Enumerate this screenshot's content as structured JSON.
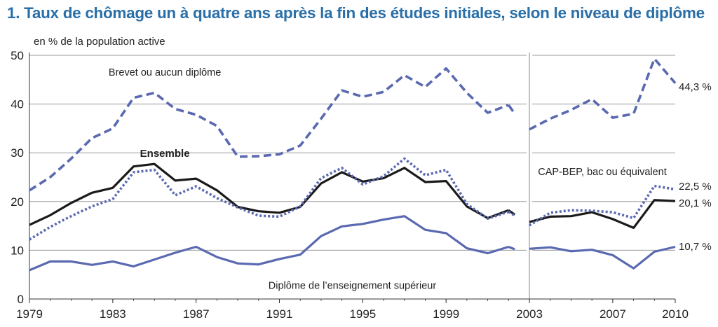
{
  "title": "1. Taux de chômage un à quatre ans après la fin des études initiales, selon le niveau de diplôme",
  "chart_data": {
    "type": "line",
    "ylabel": "en % de la population active",
    "ylim": [
      0,
      50
    ],
    "yticks": [
      0,
      10,
      20,
      30,
      40,
      50
    ],
    "xlim": [
      1979,
      2010
    ],
    "xticks": [
      1979,
      1983,
      1987,
      1991,
      1995,
      1999,
      2003,
      2007,
      2010
    ],
    "break_year": 2003,
    "grid": true,
    "colors": {
      "dark": "#1a1a1a",
      "blue": "#5a69b0",
      "grid": "#9a9a9a",
      "title": "#2a6fa8"
    },
    "series": [
      {
        "name": "Brevet ou aucun diplôme",
        "style": "dashed",
        "color": "#5a69b0",
        "segments": [
          {
            "x": [
              1979,
              1980,
              1981,
              1982,
              1983,
              1984,
              1985,
              1986,
              1987,
              1988,
              1989,
              1990,
              1991,
              1992,
              1993,
              1994,
              1995,
              1996,
              1997,
              1998,
              1999,
              2000,
              2001,
              2002
            ],
            "y": [
              22.3,
              25.0,
              28.8,
              33.0,
              35.0,
              41.3,
              42.3,
              39.0,
              37.8,
              35.5,
              29.2,
              29.3,
              29.7,
              31.5,
              37.0,
              42.8,
              41.5,
              42.5,
              45.9,
              43.5,
              47.3,
              42.3,
              38.2,
              39.8
            ]
          },
          {
            "x": [
              2002,
              2002.3
            ],
            "y": [
              39.8,
              38.0
            ]
          },
          {
            "x": [
              2003,
              2004,
              2005,
              2006,
              2007,
              2008,
              2009,
              2010
            ],
            "y": [
              34.8,
              37.0,
              38.8,
              41.0,
              37.2,
              38.0,
              49.3,
              44.3
            ]
          }
        ]
      },
      {
        "name": "Ensemble",
        "style": "solid",
        "color": "#1a1a1a",
        "segments": [
          {
            "x": [
              1979,
              1980,
              1981,
              1982,
              1983,
              1984,
              1985,
              1986,
              1987,
              1988,
              1989,
              1990,
              1991,
              1992,
              1993,
              1994,
              1995,
              1996,
              1997,
              1998,
              1999,
              2000,
              2001,
              2002
            ],
            "y": [
              15.2,
              17.2,
              19.7,
              21.8,
              22.8,
              27.2,
              27.7,
              24.3,
              24.7,
              22.3,
              18.9,
              18.0,
              17.7,
              18.9,
              23.7,
              26.0,
              24.1,
              24.8,
              26.9,
              24.0,
              24.2,
              19.0,
              16.6,
              18.2
            ]
          },
          {
            "x": [
              2002,
              2002.3
            ],
            "y": [
              18.2,
              17.3
            ]
          },
          {
            "x": [
              2003,
              2004,
              2005,
              2006,
              2007,
              2008,
              2009,
              2010
            ],
            "y": [
              15.8,
              16.9,
              17.0,
              17.8,
              16.4,
              14.6,
              20.3,
              20.1
            ]
          }
        ]
      },
      {
        "name": "CAP-BEP, bac ou équivalent",
        "style": "dotted",
        "color": "#5a69b0",
        "segments": [
          {
            "x": [
              1979,
              1980,
              1981,
              1982,
              1983,
              1984,
              1985,
              1986,
              1987,
              1988,
              1989,
              1990,
              1991,
              1992,
              1993,
              1994,
              1995,
              1996,
              1997,
              1998,
              1999,
              2000,
              2001,
              2002
            ],
            "y": [
              12.2,
              14.8,
              17.0,
              19.0,
              20.5,
              26.0,
              26.5,
              21.3,
              23.1,
              20.7,
              18.8,
              17.1,
              16.9,
              19.0,
              24.8,
              26.9,
              23.5,
              25.2,
              28.8,
              25.4,
              26.5,
              19.5,
              16.5,
              17.9
            ]
          },
          {
            "x": [
              2002,
              2002.3
            ],
            "y": [
              17.9,
              17.1
            ]
          },
          {
            "x": [
              2003,
              2004,
              2005,
              2006,
              2007,
              2008,
              2009,
              2010
            ],
            "y": [
              15.1,
              17.7,
              18.2,
              18.1,
              17.8,
              16.6,
              23.2,
              22.5
            ]
          }
        ]
      },
      {
        "name": "Diplôme de l’enseignement supérieur",
        "style": "solid",
        "color": "#5a69b0",
        "segments": [
          {
            "x": [
              1979,
              1980,
              1981,
              1982,
              1983,
              1984,
              1985,
              1986,
              1987,
              1988,
              1989,
              1990,
              1991,
              1992,
              1993,
              1994,
              1995,
              1996,
              1997,
              1998,
              1999,
              2000,
              2001,
              2002
            ],
            "y": [
              5.9,
              7.7,
              7.7,
              7.0,
              7.7,
              6.7,
              8.1,
              9.5,
              10.7,
              8.6,
              7.3,
              7.1,
              8.2,
              9.1,
              12.9,
              14.9,
              15.4,
              16.3,
              17.0,
              14.2,
              13.5,
              10.4,
              9.4,
              10.7
            ]
          },
          {
            "x": [
              2002,
              2002.3
            ],
            "y": [
              10.7,
              10.2
            ]
          },
          {
            "x": [
              2003,
              2004,
              2005,
              2006,
              2007,
              2008,
              2009,
              2010
            ],
            "y": [
              10.3,
              10.6,
              9.8,
              10.1,
              9.0,
              6.3,
              9.7,
              10.7
            ]
          }
        ]
      }
    ],
    "annotations": [
      {
        "text": "Brevet ou aucun diplôme",
        "x": 1985.5,
        "y": 45.8,
        "anchor": "middle"
      },
      {
        "text": "Ensemble",
        "x": 1985.5,
        "y": 29.2,
        "anchor": "middle",
        "bold": true
      },
      {
        "text": "CAP-BEP, bac ou équivalent",
        "x": 2006.5,
        "y": 25.4,
        "anchor": "middle"
      },
      {
        "text": "Diplôme de l’enseignement supérieur",
        "x": 1994.5,
        "y": 2.1,
        "anchor": "middle"
      }
    ],
    "end_labels": [
      {
        "text": "44,3 %",
        "y": 43.5
      },
      {
        "text": "22,5 %",
        "y": 23.1
      },
      {
        "text": "20,1 %",
        "y": 19.7
      },
      {
        "text": "10,7 %",
        "y": 10.8
      }
    ]
  }
}
